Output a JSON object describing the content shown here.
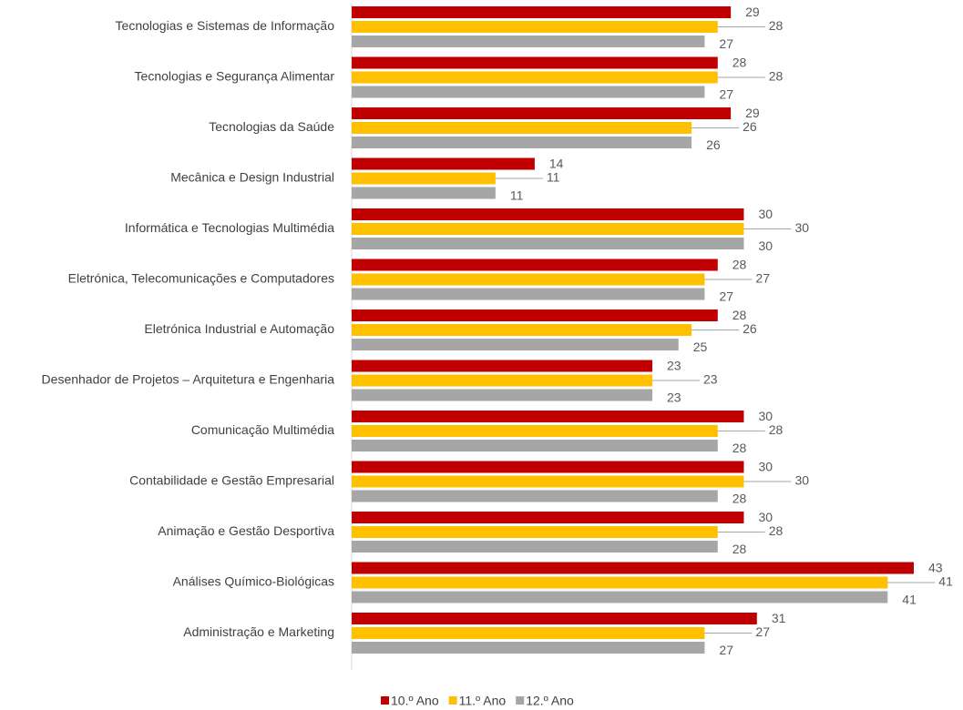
{
  "chart_data": {
    "type": "hbar",
    "categories": [
      "Tecnologias e Sistemas de Informação",
      "Tecnologias e Segurança Alimentar",
      "Tecnologias da Saúde",
      "Mecânica e Design Industrial",
      "Informática e Tecnologias Multimédia",
      "Eletrónica, Telecomunicações e Computadores",
      "Eletrónica Industrial e Automação",
      "Desenhador de Projetos – Arquitetura e Engenharia",
      "Comunicação Multimédia",
      "Contabilidade e Gestão Empresarial",
      "Animação e Gestão Desportiva",
      "Análises Químico-Biológicas",
      "Administração e Marketing"
    ],
    "series": [
      {
        "name": "10.º Ano",
        "color": "#c00000",
        "values": [
          29,
          28,
          29,
          14,
          30,
          28,
          28,
          23,
          30,
          30,
          30,
          43,
          31
        ]
      },
      {
        "name": "11.º Ano",
        "color": "#ffc000",
        "values": [
          28,
          28,
          26,
          11,
          30,
          27,
          26,
          23,
          28,
          30,
          28,
          41,
          27
        ]
      },
      {
        "name": "12.º Ano",
        "color": "#a6a6a6",
        "values": [
          27,
          27,
          26,
          11,
          30,
          27,
          25,
          23,
          28,
          28,
          28,
          41,
          27
        ]
      }
    ],
    "legend": "bottom"
  }
}
